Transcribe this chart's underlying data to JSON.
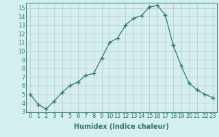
{
  "x": [
    0,
    1,
    2,
    3,
    4,
    5,
    6,
    7,
    8,
    9,
    10,
    11,
    12,
    13,
    14,
    15,
    16,
    17,
    18,
    19,
    20,
    21,
    22,
    23
  ],
  "y": [
    5.0,
    3.8,
    3.3,
    4.2,
    5.2,
    6.0,
    6.4,
    7.2,
    7.4,
    9.2,
    11.0,
    11.5,
    13.0,
    13.8,
    14.1,
    15.1,
    15.3,
    14.2,
    10.7,
    8.3,
    6.3,
    5.5,
    5.0,
    4.6
  ],
  "line_color": "#2a7a6a",
  "marker": "+",
  "marker_size": 4,
  "bg_color": "#d4f0ee",
  "grid_color": "#c8c0c8",
  "xlabel": "Humidex (Indice chaleur)",
  "xlim": [
    -0.5,
    23.5
  ],
  "ylim": [
    2.9,
    15.6
  ],
  "yticks": [
    3,
    4,
    5,
    6,
    7,
    8,
    9,
    10,
    11,
    12,
    13,
    14,
    15
  ],
  "xticks": [
    0,
    1,
    2,
    3,
    4,
    5,
    6,
    7,
    8,
    9,
    10,
    11,
    12,
    13,
    14,
    15,
    16,
    17,
    18,
    19,
    20,
    21,
    22,
    23
  ],
  "tick_fontsize": 6,
  "label_fontsize": 7
}
